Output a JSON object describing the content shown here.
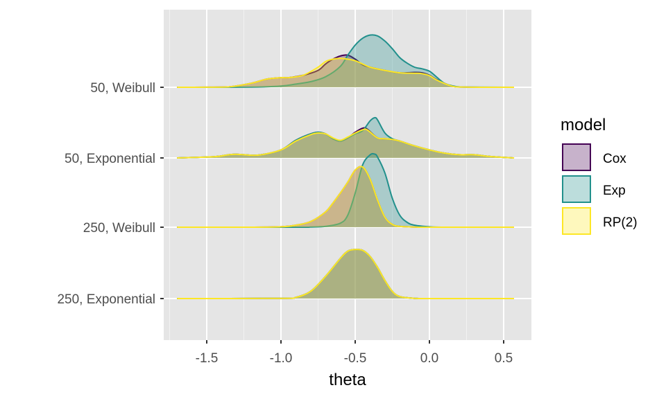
{
  "chart_data": {
    "type": "area",
    "subtype": "ridgeline-density",
    "title": "",
    "xlabel": "theta",
    "ylabel": "",
    "xlim": [
      -1.8,
      0.68
    ],
    "x_ticks": [
      -1.5,
      -1.0,
      -0.5,
      0.0,
      0.5
    ],
    "x_tick_labels": [
      "-1.5",
      "-1.0",
      "-0.5",
      "0.0",
      "0.5"
    ],
    "categories": [
      "50, Weibull",
      "50, Exponential",
      "250, Weibull",
      "250, Exponential"
    ],
    "grid": true,
    "legend": {
      "title": "model",
      "position": "right",
      "entries": [
        {
          "label": "Cox",
          "color": "#440154"
        },
        {
          "label": "Exp",
          "color": "#21908C"
        },
        {
          "label": "RP(2)",
          "color": "#FDE725"
        }
      ]
    },
    "series": [
      {
        "name": "Cox",
        "color": "#440154",
        "fill_opacity": 0.3,
        "ridges": [
          {
            "category": "50, Weibull",
            "x": [
              -1.7,
              -1.5,
              -1.35,
              -1.2,
              -1.1,
              -1.0,
              -0.95,
              -0.85,
              -0.75,
              -0.7,
              -0.65,
              -0.6,
              -0.55,
              -0.5,
              -0.45,
              -0.4,
              -0.3,
              -0.2,
              -0.1,
              -0.05,
              0.0,
              0.05,
              0.15,
              0.25,
              0.57
            ],
            "y": [
              0,
              0.001,
              0.01,
              0.1,
              0.2,
              0.24,
              0.24,
              0.3,
              0.42,
              0.58,
              0.7,
              0.78,
              0.8,
              0.7,
              0.56,
              0.5,
              0.42,
              0.36,
              0.37,
              0.36,
              0.3,
              0.19,
              0.03,
              0.005,
              0
            ]
          },
          {
            "category": "50, Exponential",
            "x": [
              -1.7,
              -1.45,
              -1.35,
              -1.3,
              -1.25,
              -1.15,
              -1.0,
              -0.9,
              -0.8,
              -0.75,
              -0.7,
              -0.65,
              -0.6,
              -0.55,
              -0.5,
              -0.45,
              -0.42,
              -0.35,
              -0.3,
              -0.25,
              -0.2,
              -0.1,
              0.0,
              0.1,
              0.2,
              0.3,
              0.4,
              0.57
            ],
            "y": [
              0,
              0.03,
              0.08,
              0.09,
              0.08,
              0.07,
              0.2,
              0.44,
              0.6,
              0.64,
              0.6,
              0.48,
              0.42,
              0.5,
              0.64,
              0.74,
              0.72,
              0.5,
              0.48,
              0.46,
              0.42,
              0.3,
              0.2,
              0.12,
              0.08,
              0.08,
              0.04,
              0
            ]
          },
          {
            "category": "250, Weibull",
            "x": [
              -1.7,
              -1.2,
              -1.0,
              -0.9,
              -0.8,
              -0.7,
              -0.65,
              -0.6,
              -0.55,
              -0.5,
              -0.45,
              -0.4,
              -0.35,
              -0.3,
              -0.25,
              -0.2,
              -0.1,
              0.0,
              0.57
            ],
            "y": [
              0,
              0,
              0.01,
              0.05,
              0.14,
              0.38,
              0.6,
              0.85,
              1.12,
              1.42,
              1.5,
              1.2,
              0.68,
              0.25,
              0.07,
              0.02,
              0.005,
              0,
              0
            ]
          },
          {
            "category": "250, Exponential",
            "x": [
              -1.7,
              -1.0,
              -0.9,
              -0.8,
              -0.7,
              -0.6,
              -0.55,
              -0.5,
              -0.45,
              -0.4,
              -0.35,
              -0.3,
              -0.25,
              -0.2,
              -0.1,
              0.0,
              0.57
            ],
            "y": [
              0,
              0.005,
              0.03,
              0.18,
              0.55,
              1.0,
              1.18,
              1.22,
              1.2,
              1.05,
              0.78,
              0.45,
              0.18,
              0.05,
              0.005,
              0,
              0
            ]
          }
        ]
      },
      {
        "name": "Exp",
        "color": "#21908C",
        "fill_opacity": 0.3,
        "ridges": [
          {
            "category": "50, Weibull",
            "x": [
              -1.7,
              -1.2,
              -1.0,
              -0.9,
              -0.8,
              -0.7,
              -0.6,
              -0.55,
              -0.5,
              -0.45,
              -0.4,
              -0.35,
              -0.3,
              -0.25,
              -0.2,
              -0.15,
              -0.1,
              -0.05,
              0.0,
              0.05,
              0.1,
              0.15,
              0.2,
              0.25,
              0.57
            ],
            "y": [
              0,
              0.005,
              0.03,
              0.08,
              0.14,
              0.26,
              0.52,
              0.8,
              1.05,
              1.22,
              1.3,
              1.28,
              1.15,
              0.96,
              0.74,
              0.6,
              0.5,
              0.46,
              0.4,
              0.25,
              0.1,
              0.04,
              0.01,
              0.005,
              0
            ]
          },
          {
            "category": "50, Exponential",
            "x": [
              -1.7,
              -1.45,
              -1.35,
              -1.3,
              -1.25,
              -1.15,
              -1.0,
              -0.9,
              -0.8,
              -0.75,
              -0.7,
              -0.65,
              -0.6,
              -0.55,
              -0.5,
              -0.45,
              -0.4,
              -0.37,
              -0.35,
              -0.3,
              -0.25,
              -0.2,
              -0.1,
              0.0,
              0.1,
              0.2,
              0.3,
              0.4,
              0.57
            ],
            "y": [
              0,
              0.03,
              0.08,
              0.09,
              0.08,
              0.07,
              0.2,
              0.44,
              0.6,
              0.64,
              0.6,
              0.48,
              0.42,
              0.5,
              0.6,
              0.68,
              0.92,
              1.0,
              0.95,
              0.62,
              0.48,
              0.42,
              0.3,
              0.2,
              0.12,
              0.08,
              0.08,
              0.04,
              0
            ]
          },
          {
            "category": "250, Weibull",
            "x": [
              -1.7,
              -0.9,
              -0.8,
              -0.7,
              -0.6,
              -0.55,
              -0.5,
              -0.45,
              -0.4,
              -0.37,
              -0.35,
              -0.3,
              -0.25,
              -0.2,
              -0.15,
              -0.1,
              0.0,
              0.1,
              0.57
            ],
            "y": [
              0,
              0,
              0.005,
              0.02,
              0.1,
              0.3,
              0.85,
              1.55,
              1.8,
              1.82,
              1.75,
              1.35,
              0.72,
              0.3,
              0.12,
              0.05,
              0.01,
              0,
              0
            ]
          },
          {
            "category": "250, Exponential",
            "x": [
              -1.7,
              -1.0,
              -0.9,
              -0.8,
              -0.7,
              -0.6,
              -0.55,
              -0.5,
              -0.45,
              -0.4,
              -0.35,
              -0.3,
              -0.25,
              -0.2,
              -0.1,
              0.0,
              0.57
            ],
            "y": [
              0,
              0.005,
              0.03,
              0.18,
              0.55,
              1.0,
              1.18,
              1.22,
              1.2,
              1.05,
              0.78,
              0.45,
              0.18,
              0.05,
              0.005,
              0,
              0
            ]
          }
        ]
      },
      {
        "name": "RP(2)",
        "color": "#FDE725",
        "fill_opacity": 0.3,
        "ridges": [
          {
            "category": "50, Weibull",
            "x": [
              -1.7,
              -1.5,
              -1.35,
              -1.2,
              -1.1,
              -1.0,
              -0.95,
              -0.85,
              -0.75,
              -0.7,
              -0.65,
              -0.6,
              -0.55,
              -0.5,
              -0.45,
              -0.4,
              -0.3,
              -0.2,
              -0.1,
              -0.05,
              0.0,
              0.05,
              0.15,
              0.25,
              0.57
            ],
            "y": [
              0,
              0.001,
              0.01,
              0.1,
              0.2,
              0.24,
              0.24,
              0.3,
              0.5,
              0.64,
              0.7,
              0.72,
              0.7,
              0.66,
              0.58,
              0.5,
              0.42,
              0.36,
              0.35,
              0.34,
              0.29,
              0.18,
              0.03,
              0.005,
              0
            ]
          },
          {
            "category": "50, Exponential",
            "x": [
              -1.7,
              -1.45,
              -1.35,
              -1.3,
              -1.25,
              -1.15,
              -1.0,
              -0.9,
              -0.8,
              -0.75,
              -0.7,
              -0.65,
              -0.6,
              -0.55,
              -0.5,
              -0.45,
              -0.42,
              -0.35,
              -0.3,
              -0.25,
              -0.2,
              -0.1,
              0.0,
              0.1,
              0.2,
              0.3,
              0.4,
              0.57
            ],
            "y": [
              0,
              0.03,
              0.08,
              0.09,
              0.08,
              0.07,
              0.2,
              0.42,
              0.58,
              0.62,
              0.6,
              0.5,
              0.44,
              0.52,
              0.62,
              0.7,
              0.7,
              0.5,
              0.48,
              0.46,
              0.42,
              0.3,
              0.2,
              0.12,
              0.08,
              0.08,
              0.04,
              0
            ]
          },
          {
            "category": "250, Weibull",
            "x": [
              -1.7,
              -1.2,
              -1.0,
              -0.9,
              -0.8,
              -0.7,
              -0.65,
              -0.6,
              -0.55,
              -0.5,
              -0.45,
              -0.4,
              -0.35,
              -0.3,
              -0.25,
              -0.2,
              -0.1,
              0.0,
              0.57
            ],
            "y": [
              0,
              0,
              0.01,
              0.05,
              0.14,
              0.38,
              0.6,
              0.85,
              1.12,
              1.42,
              1.5,
              1.2,
              0.68,
              0.25,
              0.07,
              0.02,
              0.005,
              0,
              0
            ]
          },
          {
            "category": "250, Exponential",
            "x": [
              -1.7,
              -1.0,
              -0.9,
              -0.8,
              -0.7,
              -0.6,
              -0.55,
              -0.5,
              -0.45,
              -0.4,
              -0.35,
              -0.3,
              -0.25,
              -0.2,
              -0.1,
              0.0,
              0.57
            ],
            "y": [
              0,
              0.005,
              0.03,
              0.18,
              0.55,
              1.0,
              1.18,
              1.22,
              1.2,
              1.05,
              0.78,
              0.45,
              0.18,
              0.05,
              0.005,
              0,
              0
            ]
          }
        ]
      }
    ]
  }
}
